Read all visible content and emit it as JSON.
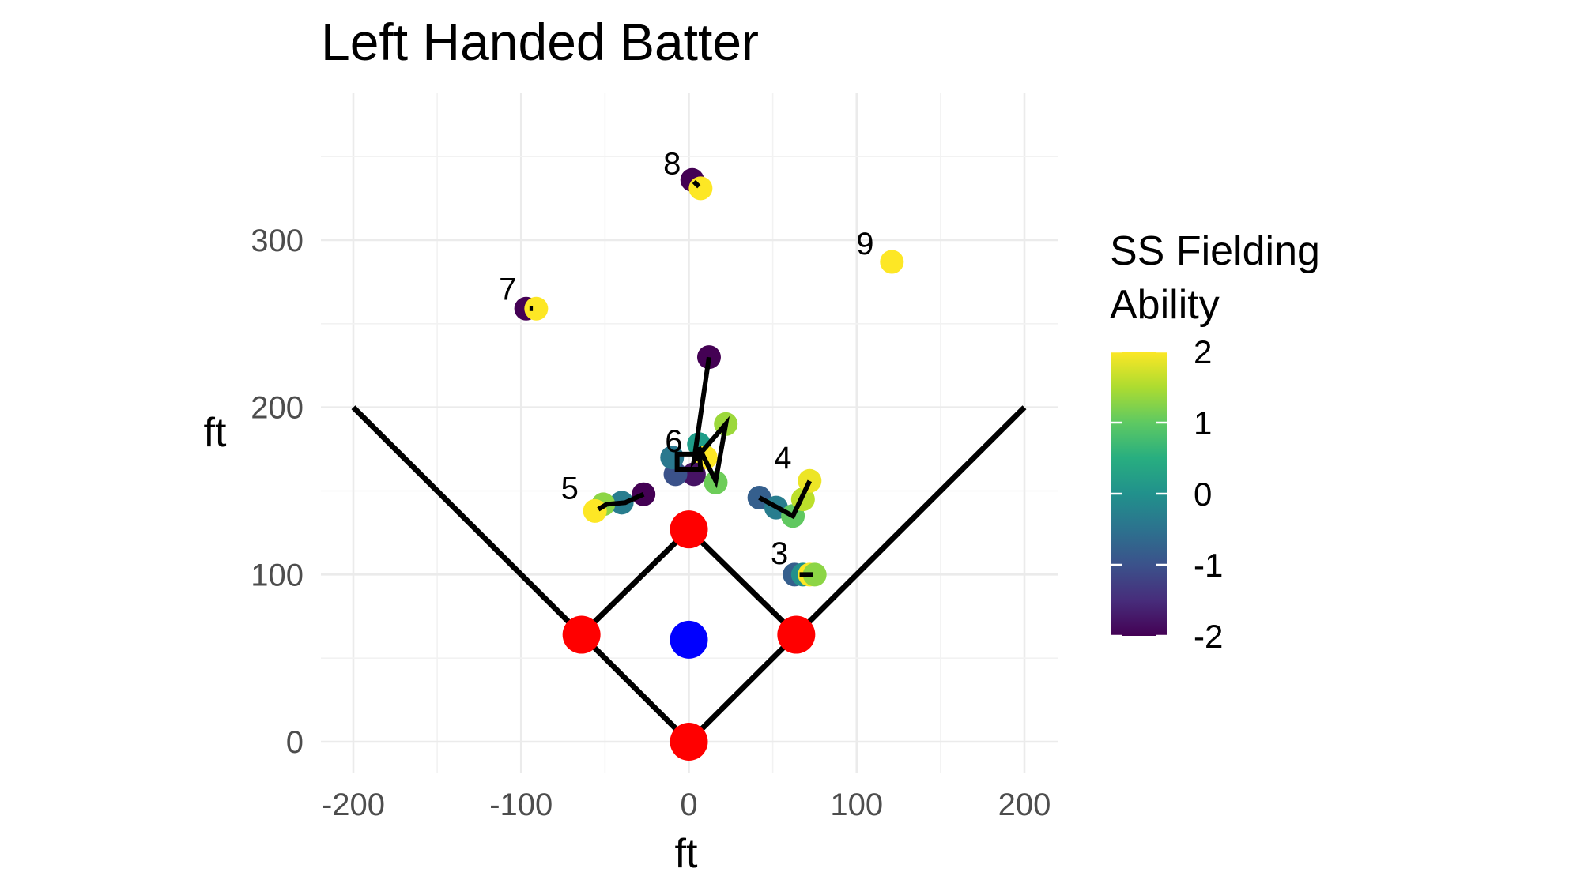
{
  "chart_data": {
    "type": "scatter",
    "title": "Left Handed Batter",
    "xlabel": "ft",
    "ylabel": "ft",
    "xlim": [
      -200,
      200
    ],
    "ylim": [
      -15,
      370
    ],
    "x_ticks": [
      "-200",
      "-100",
      "0",
      "100",
      "200"
    ],
    "x_tick_values": [
      -200,
      -100,
      0,
      100,
      200
    ],
    "y_ticks": [
      "0",
      "100",
      "200",
      "300"
    ],
    "y_tick_values": [
      0,
      100,
      200,
      300
    ],
    "grid": true,
    "legend": {
      "title_lines": [
        "SS Fielding",
        "Ability"
      ],
      "position": "right",
      "range": [
        -2,
        2
      ],
      "labels": [
        "2",
        "1",
        "0",
        "-1",
        "-2"
      ],
      "label_values": [
        2,
        1,
        0,
        -1,
        -2
      ],
      "colormap": "viridis"
    },
    "field_lines": [
      [
        [
          -200,
          200
        ],
        [
          0,
          0
        ],
        [
          200,
          200
        ]
      ],
      [
        [
          -64,
          64
        ],
        [
          0,
          127
        ],
        [
          64,
          64
        ]
      ]
    ],
    "bases": [
      {
        "x": 0,
        "y": 0
      },
      {
        "x": -64,
        "y": 64
      },
      {
        "x": 0,
        "y": 127
      },
      {
        "x": 64,
        "y": 64
      }
    ],
    "base_color": "#ff0000",
    "pitcher": {
      "x": 0,
      "y": 61,
      "color": "#0000ff"
    },
    "positions": [
      {
        "label": "3",
        "label_pos": [
          54,
          113
        ],
        "points": [
          [
            63,
            100,
            -0.8
          ],
          [
            68,
            100,
            0.0
          ],
          [
            72,
            100,
            2.0
          ],
          [
            75,
            100,
            1.3
          ]
        ],
        "path": [
          [
            66,
            100
          ],
          [
            74,
            100
          ]
        ]
      },
      {
        "label": "4",
        "label_pos": [
          56,
          170
        ],
        "points": [
          [
            42,
            146,
            -0.8
          ],
          [
            52,
            140,
            -0.3
          ],
          [
            62,
            135,
            1.0
          ],
          [
            68,
            145,
            1.6
          ],
          [
            72,
            156,
            1.9
          ]
        ],
        "path": [
          [
            42,
            146
          ],
          [
            62,
            135
          ],
          [
            72,
            156
          ]
        ]
      },
      {
        "label": "5",
        "label_pos": [
          -71,
          152
        ],
        "points": [
          [
            -27,
            148,
            -2.0
          ],
          [
            -40,
            143,
            -0.3
          ],
          [
            -51,
            142,
            1.3
          ],
          [
            -56,
            138,
            2.0
          ]
        ],
        "path": [
          [
            -27,
            148
          ],
          [
            -38,
            143
          ],
          [
            -49,
            142
          ],
          [
            -54,
            139
          ]
        ]
      },
      {
        "label": "6",
        "label_pos": [
          -9,
          180
        ],
        "points": [
          [
            12,
            230,
            -2.0
          ],
          [
            22,
            190,
            1.4
          ],
          [
            16,
            155,
            1.1
          ],
          [
            6,
            178,
            0.2
          ],
          [
            10,
            170,
            2.0
          ],
          [
            3,
            160,
            -1.8
          ],
          [
            -8,
            160,
            -1.0
          ],
          [
            -10,
            170,
            -0.4
          ]
        ],
        "path": [
          [
            12,
            230
          ],
          [
            3,
            168
          ],
          [
            22,
            190
          ],
          [
            16,
            156
          ],
          [
            6,
            176
          ],
          [
            7,
            163
          ],
          [
            -7,
            163
          ],
          [
            -7,
            172
          ],
          [
            5,
            172
          ]
        ]
      },
      {
        "label": "7",
        "label_pos": [
          -108,
          271
        ],
        "points": [
          [
            -97,
            259,
            -2.0
          ],
          [
            -91,
            259,
            2.0
          ]
        ],
        "path": [
          [
            -95,
            259
          ],
          [
            -93,
            259
          ]
        ]
      },
      {
        "label": "8",
        "label_pos": [
          -10,
          346
        ],
        "points": [
          [
            2,
            336,
            -2.0
          ],
          [
            7,
            331,
            2.0
          ]
        ],
        "path": [
          [
            3,
            335
          ],
          [
            6,
            332
          ]
        ]
      },
      {
        "label": "9",
        "label_pos": [
          105,
          298
        ],
        "points": [
          [
            121,
            287,
            2.0
          ]
        ],
        "path": []
      }
    ]
  }
}
